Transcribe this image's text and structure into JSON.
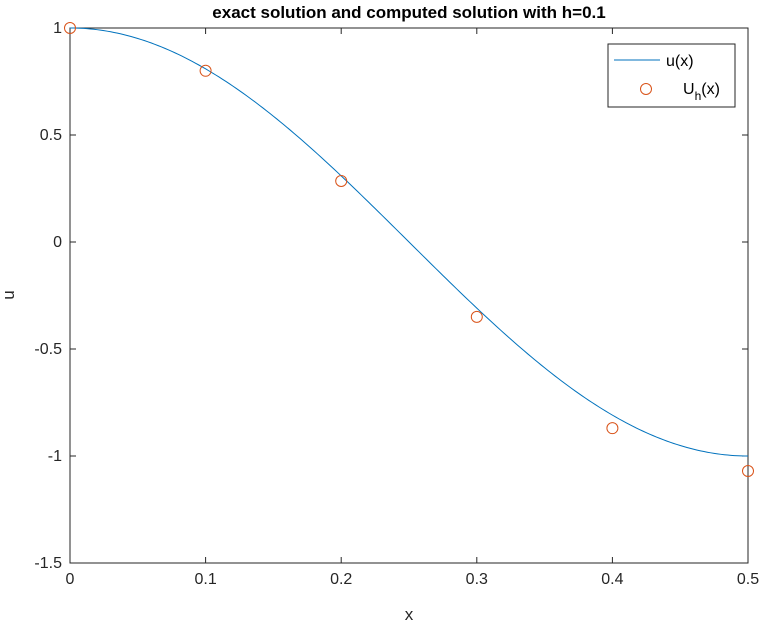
{
  "chart_data": {
    "type": "line",
    "title": "exact solution and computed solution with h=0.1",
    "xlabel": "x",
    "ylabel": "u",
    "xlim": [
      0,
      0.5
    ],
    "ylim": [
      -1.5,
      1
    ],
    "grid": false,
    "xticks": [
      0,
      0.1,
      0.2,
      0.3,
      0.4,
      0.5
    ],
    "xtick_labels": [
      "0",
      "0.1",
      "0.2",
      "0.3",
      "0.4",
      "0.5"
    ],
    "yticks": [
      -1.5,
      -1,
      -0.5,
      0,
      0.5,
      1
    ],
    "ytick_labels": [
      "-1.5",
      "-1",
      "-0.5",
      "0",
      "0.5",
      "1"
    ],
    "legend_position": "top-right",
    "series": [
      {
        "name": "u(x)",
        "legend_main": "u(x)",
        "style": "line",
        "color": "#0072BD",
        "function": "cos(2*pi*x)",
        "x": [
          0,
          0.025,
          0.05,
          0.075,
          0.1,
          0.125,
          0.15,
          0.175,
          0.2,
          0.225,
          0.25,
          0.275,
          0.3,
          0.325,
          0.35,
          0.375,
          0.4,
          0.425,
          0.45,
          0.475,
          0.5
        ],
        "y": [
          1.0,
          0.988,
          0.951,
          0.891,
          0.809,
          0.707,
          0.588,
          0.454,
          0.309,
          0.156,
          0.0,
          -0.156,
          -0.309,
          -0.454,
          -0.588,
          -0.707,
          -0.809,
          -0.891,
          -0.951,
          -0.988,
          -1.0
        ]
      },
      {
        "name": "U_h(x)",
        "legend_main": "U",
        "legend_sub": "h",
        "legend_tail": "(x)",
        "style": "markers",
        "marker": "circle",
        "color": "#D95319",
        "x": [
          0,
          0.1,
          0.2,
          0.3,
          0.4,
          0.5
        ],
        "y": [
          1.0,
          0.8,
          0.285,
          -0.35,
          -0.87,
          -1.07
        ]
      }
    ]
  }
}
